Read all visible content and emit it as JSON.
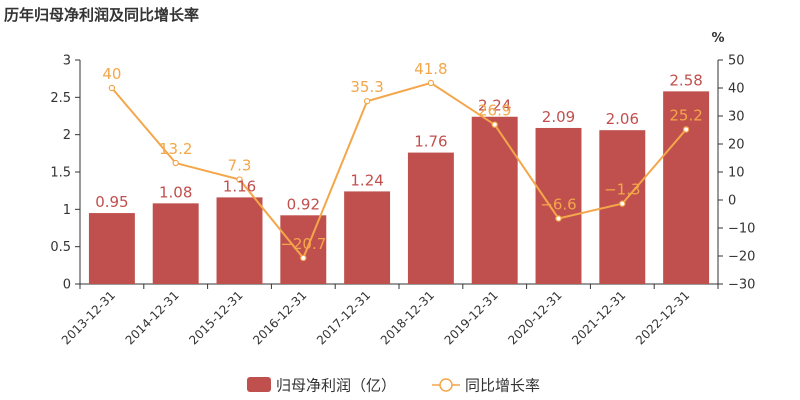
{
  "title": "历年归母净利润及同比增长率",
  "chart_data": {
    "type": "bar",
    "title": "历年归母净利润及同比增长率",
    "categories": [
      "2013-12-31",
      "2014-12-31",
      "2015-12-31",
      "2016-12-31",
      "2017-12-31",
      "2018-12-31",
      "2019-12-31",
      "2020-12-31",
      "2021-12-31",
      "2022-12-31"
    ],
    "series": [
      {
        "name": "归母净利润（亿）",
        "type": "bar",
        "axis": "left",
        "color": "#c0504d",
        "values": [
          0.95,
          1.08,
          1.16,
          0.92,
          1.24,
          1.76,
          2.24,
          2.09,
          2.06,
          2.58
        ],
        "labels": [
          "0.95",
          "1.08",
          "1.16",
          "0.92",
          "1.24",
          "1.76",
          "2.24",
          "2.09",
          "2.06",
          "2.58"
        ]
      },
      {
        "name": "同比增长率",
        "type": "line",
        "axis": "right",
        "color": "#f4a64a",
        "values": [
          40,
          13.2,
          7.3,
          -20.7,
          35.3,
          41.8,
          26.9,
          -6.6,
          -1.3,
          25.2
        ],
        "labels": [
          "40",
          "13.2",
          "7.3",
          "−20.7",
          "35.3",
          "41.8",
          "26.9",
          "−6.6",
          "−1.3",
          "25.2"
        ]
      }
    ],
    "left_axis": {
      "ylim": [
        0,
        3
      ],
      "ticks": [
        "0",
        "0.5",
        "1",
        "1.5",
        "2",
        "2.5",
        "3"
      ]
    },
    "right_axis": {
      "unit": "%",
      "ylim": [
        -30,
        50
      ],
      "ticks": [
        "−30",
        "−20",
        "−10",
        "0",
        "10",
        "20",
        "30",
        "40",
        "50"
      ]
    },
    "grid": false,
    "legend": "bottom-center"
  }
}
